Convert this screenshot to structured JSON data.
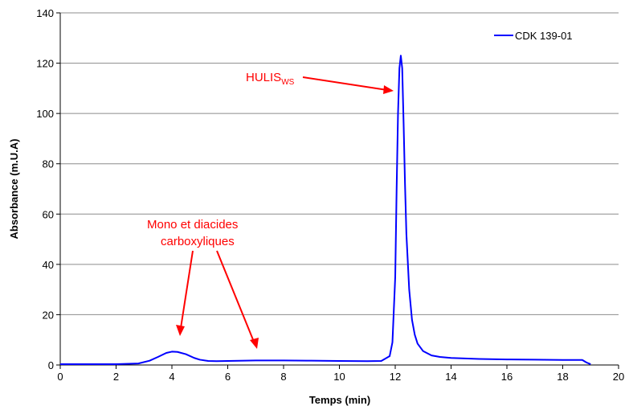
{
  "chart_data": {
    "type": "line",
    "xlabel": "Temps (min)",
    "ylabel": "Absorbance (m.U.A)",
    "xlim": [
      0,
      20
    ],
    "ylim": [
      0,
      140
    ],
    "xticks": [
      0,
      2,
      4,
      6,
      8,
      10,
      12,
      14,
      16,
      18,
      20
    ],
    "yticks": [
      0,
      20,
      40,
      60,
      80,
      100,
      120,
      140
    ],
    "grid": "horizontal",
    "legend": "top-right",
    "series": [
      {
        "name": "CDK 139-01",
        "color": "#0000ff",
        "x": [
          0,
          2.0,
          2.8,
          3.2,
          3.5,
          3.8,
          4.0,
          4.2,
          4.5,
          4.8,
          5.0,
          5.3,
          5.6,
          6.0,
          7.0,
          8.0,
          9.0,
          10.0,
          11.0,
          11.5,
          11.8,
          11.9,
          12.0,
          12.05,
          12.1,
          12.15,
          12.2,
          12.25,
          12.3,
          12.35,
          12.4,
          12.5,
          12.6,
          12.7,
          12.8,
          13.0,
          13.3,
          13.6,
          14.0,
          15.0,
          16.0,
          17.0,
          18.0,
          18.7,
          18.85,
          19.0
        ],
        "y": [
          0.3,
          0.3,
          0.6,
          1.7,
          3.2,
          4.8,
          5.3,
          5.2,
          4.3,
          2.8,
          2.1,
          1.6,
          1.5,
          1.6,
          1.8,
          1.8,
          1.7,
          1.6,
          1.5,
          1.6,
          3.5,
          9.0,
          35.0,
          70.0,
          100.0,
          118.0,
          123.0,
          118.0,
          96.0,
          72.0,
          52.0,
          30.0,
          18.0,
          12.0,
          8.5,
          5.5,
          3.8,
          3.2,
          2.8,
          2.4,
          2.2,
          2.1,
          2.0,
          2.0,
          1.0,
          0.3
        ]
      }
    ],
    "annotations": [
      {
        "text": "HULIS",
        "sub": "WS",
        "color": "#ff0000"
      },
      {
        "lines": [
          "Mono et diacides",
          "carboxyliques"
        ],
        "color": "#ff0000"
      }
    ]
  }
}
